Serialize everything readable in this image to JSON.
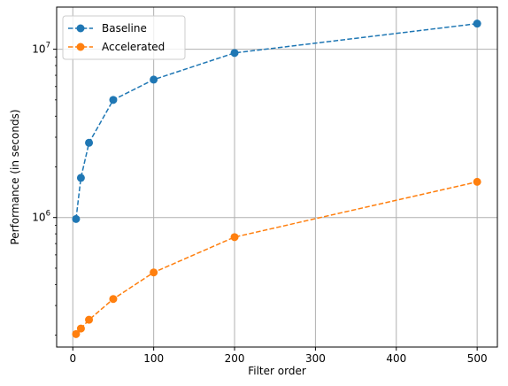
{
  "chart_data": {
    "type": "line",
    "title": "",
    "xlabel": "Filter order",
    "ylabel": "Performance (in seconds)",
    "xlim": [
      -20,
      525
    ],
    "ylim": [
      170000,
      17800000
    ],
    "yscale": "log",
    "grid": true,
    "legend_position": "top-left",
    "x": [
      4,
      10,
      20,
      50,
      100,
      200,
      500
    ],
    "x_ticks": [
      0,
      100,
      200,
      300,
      400,
      500
    ],
    "y_ticks": [
      {
        "value": 1000000,
        "base": "10",
        "exp": "6"
      },
      {
        "value": 10000000,
        "base": "10",
        "exp": "7"
      }
    ],
    "series": [
      {
        "name": "Baseline",
        "color": "#1f77b4",
        "line_style": "dashed",
        "marker": "circle",
        "values": [
          980000,
          1720000,
          2780000,
          5000000,
          6600000,
          9500000,
          14200000
        ]
      },
      {
        "name": "Accelerated",
        "color": "#ff7f0e",
        "line_style": "dashed",
        "marker": "circle",
        "values": [
          203000,
          219000,
          247000,
          328000,
          472000,
          765000,
          1630000
        ]
      }
    ]
  }
}
